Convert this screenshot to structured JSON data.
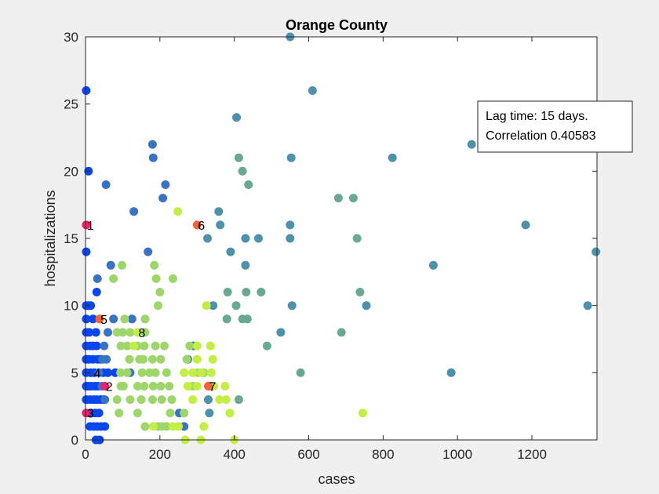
{
  "chart_data": {
    "type": "scatter",
    "title": "Orange County",
    "xlabel": "cases",
    "ylabel": "hospitalizations",
    "xlim": [
      0,
      1375
    ],
    "ylim": [
      0,
      30
    ],
    "xticks": [
      0,
      200,
      400,
      600,
      800,
      1000,
      1200
    ],
    "yticks": [
      0,
      5,
      10,
      15,
      20,
      25,
      30
    ],
    "grid": false,
    "legend": {
      "placement": "top-right",
      "lines": [
        "Lag time: 15 days.",
        "Correlation 0.40583"
      ]
    },
    "colors": {
      "blue": "#0a46f0",
      "steel": "#3a72c4",
      "teal": "#4f91aa",
      "sage": "#6aa892",
      "green": "#9ed66c",
      "lime": "#c3ef44",
      "pink": "#f01e6e",
      "orange": "#f0643a"
    },
    "points": [
      {
        "x": 2,
        "y": 26,
        "c": "blue"
      },
      {
        "x": 8,
        "y": 20,
        "c": "blue"
      },
      {
        "x": 2,
        "y": 14,
        "c": "blue"
      },
      {
        "x": 2,
        "y": 10,
        "c": "blue"
      },
      {
        "x": 8,
        "y": 10,
        "c": "blue"
      },
      {
        "x": 14,
        "y": 10,
        "c": "blue"
      },
      {
        "x": 2,
        "y": 9,
        "c": "blue"
      },
      {
        "x": 20,
        "y": 9,
        "c": "blue"
      },
      {
        "x": 2,
        "y": 8,
        "c": "blue"
      },
      {
        "x": 10,
        "y": 8,
        "c": "blue"
      },
      {
        "x": 28,
        "y": 8,
        "c": "blue"
      },
      {
        "x": 2,
        "y": 7,
        "c": "blue"
      },
      {
        "x": 12,
        "y": 7,
        "c": "blue"
      },
      {
        "x": 20,
        "y": 7,
        "c": "blue"
      },
      {
        "x": 30,
        "y": 7,
        "c": "blue"
      },
      {
        "x": 2,
        "y": 6,
        "c": "blue"
      },
      {
        "x": 10,
        "y": 6,
        "c": "blue"
      },
      {
        "x": 20,
        "y": 6,
        "c": "blue"
      },
      {
        "x": 32,
        "y": 6,
        "c": "blue"
      },
      {
        "x": 40,
        "y": 6,
        "c": "blue"
      },
      {
        "x": 2,
        "y": 5,
        "c": "blue"
      },
      {
        "x": 14,
        "y": 5,
        "c": "blue"
      },
      {
        "x": 24,
        "y": 5,
        "c": "blue"
      },
      {
        "x": 36,
        "y": 5,
        "c": "blue"
      },
      {
        "x": 48,
        "y": 5,
        "c": "blue"
      },
      {
        "x": 60,
        "y": 5,
        "c": "blue"
      },
      {
        "x": 80,
        "y": 5,
        "c": "blue"
      },
      {
        "x": 2,
        "y": 4,
        "c": "blue"
      },
      {
        "x": 8,
        "y": 4,
        "c": "blue"
      },
      {
        "x": 16,
        "y": 4,
        "c": "blue"
      },
      {
        "x": 26,
        "y": 4,
        "c": "blue"
      },
      {
        "x": 34,
        "y": 4,
        "c": "blue"
      },
      {
        "x": 2,
        "y": 3,
        "c": "blue"
      },
      {
        "x": 12,
        "y": 3,
        "c": "blue"
      },
      {
        "x": 22,
        "y": 3,
        "c": "blue"
      },
      {
        "x": 30,
        "y": 3,
        "c": "blue"
      },
      {
        "x": 40,
        "y": 3,
        "c": "blue"
      },
      {
        "x": 48,
        "y": 3,
        "c": "blue"
      },
      {
        "x": 14,
        "y": 2,
        "c": "blue"
      },
      {
        "x": 26,
        "y": 2,
        "c": "blue"
      },
      {
        "x": 36,
        "y": 2,
        "c": "blue"
      },
      {
        "x": 12,
        "y": 1,
        "c": "blue"
      },
      {
        "x": 22,
        "y": 1,
        "c": "blue"
      },
      {
        "x": 32,
        "y": 1,
        "c": "blue"
      },
      {
        "x": 42,
        "y": 1,
        "c": "blue"
      },
      {
        "x": 52,
        "y": 1,
        "c": "blue"
      },
      {
        "x": 28,
        "y": 0,
        "c": "blue"
      },
      {
        "x": 38,
        "y": 0,
        "c": "blue"
      },
      {
        "x": 30,
        "y": 11,
        "c": "blue"
      },
      {
        "x": 32,
        "y": 12,
        "c": "steel"
      },
      {
        "x": 55,
        "y": 19,
        "c": "steel"
      },
      {
        "x": 68,
        "y": 13,
        "c": "steel"
      },
      {
        "x": 60,
        "y": 8,
        "c": "steel"
      },
      {
        "x": 75,
        "y": 9,
        "c": "steel"
      },
      {
        "x": 50,
        "y": 7,
        "c": "steel"
      },
      {
        "x": 56,
        "y": 6,
        "c": "steel"
      },
      {
        "x": 46,
        "y": 6,
        "c": "steel"
      },
      {
        "x": 52,
        "y": 3,
        "c": "steel"
      },
      {
        "x": 44,
        "y": 4,
        "c": "steel"
      },
      {
        "x": 36,
        "y": 5,
        "c": "steel"
      },
      {
        "x": 130,
        "y": 17,
        "c": "steel"
      },
      {
        "x": 168,
        "y": 14,
        "c": "steel"
      },
      {
        "x": 180,
        "y": 22,
        "c": "steel"
      },
      {
        "x": 182,
        "y": 21,
        "c": "steel"
      },
      {
        "x": 208,
        "y": 18,
        "c": "steel"
      },
      {
        "x": 215,
        "y": 19,
        "c": "steel"
      },
      {
        "x": 125,
        "y": 9,
        "c": "steel"
      },
      {
        "x": 120,
        "y": 5,
        "c": "steel"
      },
      {
        "x": 265,
        "y": 1,
        "c": "steel"
      },
      {
        "x": 252,
        "y": 2,
        "c": "steel"
      },
      {
        "x": 275,
        "y": 6,
        "c": "steel"
      },
      {
        "x": 290,
        "y": 7,
        "c": "steel"
      },
      {
        "x": 328,
        "y": 15,
        "c": "teal"
      },
      {
        "x": 343,
        "y": 10,
        "c": "teal"
      },
      {
        "x": 358,
        "y": 17,
        "c": "teal"
      },
      {
        "x": 362,
        "y": 16,
        "c": "teal"
      },
      {
        "x": 390,
        "y": 14,
        "c": "teal"
      },
      {
        "x": 406,
        "y": 24,
        "c": "teal"
      },
      {
        "x": 430,
        "y": 15,
        "c": "teal"
      },
      {
        "x": 430,
        "y": 13,
        "c": "teal"
      },
      {
        "x": 465,
        "y": 15,
        "c": "teal"
      },
      {
        "x": 550,
        "y": 30,
        "c": "teal"
      },
      {
        "x": 610,
        "y": 26,
        "c": "teal"
      },
      {
        "x": 553,
        "y": 21,
        "c": "teal"
      },
      {
        "x": 550,
        "y": 16,
        "c": "teal"
      },
      {
        "x": 550,
        "y": 15,
        "c": "teal"
      },
      {
        "x": 555,
        "y": 10,
        "c": "teal"
      },
      {
        "x": 525,
        "y": 8,
        "c": "teal"
      },
      {
        "x": 825,
        "y": 21,
        "c": "teal"
      },
      {
        "x": 1038,
        "y": 22,
        "c": "teal"
      },
      {
        "x": 1183,
        "y": 16,
        "c": "teal"
      },
      {
        "x": 935,
        "y": 13,
        "c": "teal"
      },
      {
        "x": 983,
        "y": 5,
        "c": "teal"
      },
      {
        "x": 1350,
        "y": 10,
        "c": "teal"
      },
      {
        "x": 1372,
        "y": 14,
        "c": "teal"
      },
      {
        "x": 755,
        "y": 10,
        "c": "teal"
      },
      {
        "x": 338,
        "y": 4,
        "c": "teal"
      },
      {
        "x": 330,
        "y": 3,
        "c": "teal"
      },
      {
        "x": 333,
        "y": 2,
        "c": "teal"
      },
      {
        "x": 412,
        "y": 21,
        "c": "sage"
      },
      {
        "x": 422,
        "y": 20,
        "c": "sage"
      },
      {
        "x": 438,
        "y": 19,
        "c": "sage"
      },
      {
        "x": 680,
        "y": 18,
        "c": "sage"
      },
      {
        "x": 720,
        "y": 18,
        "c": "sage"
      },
      {
        "x": 730,
        "y": 15,
        "c": "sage"
      },
      {
        "x": 738,
        "y": 11,
        "c": "sage"
      },
      {
        "x": 688,
        "y": 8,
        "c": "sage"
      },
      {
        "x": 578,
        "y": 5,
        "c": "sage"
      },
      {
        "x": 488,
        "y": 7,
        "c": "sage"
      },
      {
        "x": 472,
        "y": 11,
        "c": "sage"
      },
      {
        "x": 432,
        "y": 11,
        "c": "sage"
      },
      {
        "x": 435,
        "y": 9,
        "c": "sage"
      },
      {
        "x": 422,
        "y": 9,
        "c": "sage"
      },
      {
        "x": 405,
        "y": 10,
        "c": "sage"
      },
      {
        "x": 382,
        "y": 11,
        "c": "sage"
      },
      {
        "x": 380,
        "y": 9,
        "c": "sage"
      },
      {
        "x": 412,
        "y": 3,
        "c": "sage"
      },
      {
        "x": 75,
        "y": 12,
        "c": "green"
      },
      {
        "x": 98,
        "y": 13,
        "c": "green"
      },
      {
        "x": 185,
        "y": 13,
        "c": "green"
      },
      {
        "x": 190,
        "y": 12,
        "c": "green"
      },
      {
        "x": 235,
        "y": 12,
        "c": "green"
      },
      {
        "x": 195,
        "y": 10,
        "c": "green"
      },
      {
        "x": 200,
        "y": 11,
        "c": "green"
      },
      {
        "x": 160,
        "y": 9,
        "c": "green"
      },
      {
        "x": 105,
        "y": 9,
        "c": "green"
      },
      {
        "x": 85,
        "y": 8,
        "c": "green"
      },
      {
        "x": 100,
        "y": 8,
        "c": "green"
      },
      {
        "x": 120,
        "y": 8,
        "c": "green"
      },
      {
        "x": 160,
        "y": 8,
        "c": "green"
      },
      {
        "x": 95,
        "y": 7,
        "c": "green"
      },
      {
        "x": 112,
        "y": 7,
        "c": "green"
      },
      {
        "x": 140,
        "y": 7,
        "c": "green"
      },
      {
        "x": 158,
        "y": 7,
        "c": "green"
      },
      {
        "x": 188,
        "y": 7,
        "c": "green"
      },
      {
        "x": 212,
        "y": 7,
        "c": "green"
      },
      {
        "x": 118,
        "y": 6,
        "c": "green"
      },
      {
        "x": 145,
        "y": 6,
        "c": "green"
      },
      {
        "x": 155,
        "y": 6,
        "c": "green"
      },
      {
        "x": 180,
        "y": 6,
        "c": "green"
      },
      {
        "x": 202,
        "y": 6,
        "c": "green"
      },
      {
        "x": 94,
        "y": 5,
        "c": "green"
      },
      {
        "x": 112,
        "y": 5,
        "c": "green"
      },
      {
        "x": 152,
        "y": 5,
        "c": "green"
      },
      {
        "x": 172,
        "y": 5,
        "c": "green"
      },
      {
        "x": 188,
        "y": 5,
        "c": "green"
      },
      {
        "x": 218,
        "y": 5,
        "c": "green"
      },
      {
        "x": 95,
        "y": 4,
        "c": "green"
      },
      {
        "x": 102,
        "y": 4,
        "c": "green"
      },
      {
        "x": 140,
        "y": 4,
        "c": "green"
      },
      {
        "x": 158,
        "y": 4,
        "c": "green"
      },
      {
        "x": 182,
        "y": 4,
        "c": "green"
      },
      {
        "x": 202,
        "y": 4,
        "c": "green"
      },
      {
        "x": 225,
        "y": 4,
        "c": "green"
      },
      {
        "x": 85,
        "y": 3,
        "c": "green"
      },
      {
        "x": 120,
        "y": 3,
        "c": "green"
      },
      {
        "x": 150,
        "y": 3,
        "c": "green"
      },
      {
        "x": 180,
        "y": 3,
        "c": "green"
      },
      {
        "x": 205,
        "y": 3,
        "c": "green"
      },
      {
        "x": 232,
        "y": 3,
        "c": "green"
      },
      {
        "x": 90,
        "y": 2,
        "c": "green"
      },
      {
        "x": 140,
        "y": 2,
        "c": "green"
      },
      {
        "x": 228,
        "y": 2,
        "c": "green"
      },
      {
        "x": 265,
        "y": 2,
        "c": "green"
      },
      {
        "x": 160,
        "y": 1,
        "c": "green"
      },
      {
        "x": 195,
        "y": 1,
        "c": "green"
      },
      {
        "x": 205,
        "y": 1,
        "c": "green"
      },
      {
        "x": 218,
        "y": 1,
        "c": "green"
      },
      {
        "x": 272,
        "y": 6,
        "c": "green"
      },
      {
        "x": 280,
        "y": 7,
        "c": "green"
      },
      {
        "x": 288,
        "y": 4,
        "c": "green"
      },
      {
        "x": 302,
        "y": 5,
        "c": "green"
      },
      {
        "x": 318,
        "y": 5,
        "c": "green"
      },
      {
        "x": 248,
        "y": 17,
        "c": "lime"
      },
      {
        "x": 325,
        "y": 10,
        "c": "lime"
      },
      {
        "x": 300,
        "y": 7,
        "c": "lime"
      },
      {
        "x": 336,
        "y": 7,
        "c": "lime"
      },
      {
        "x": 300,
        "y": 6,
        "c": "lime"
      },
      {
        "x": 342,
        "y": 6,
        "c": "lime"
      },
      {
        "x": 265,
        "y": 5,
        "c": "lime"
      },
      {
        "x": 288,
        "y": 5,
        "c": "lime"
      },
      {
        "x": 312,
        "y": 5,
        "c": "lime"
      },
      {
        "x": 338,
        "y": 5,
        "c": "lime"
      },
      {
        "x": 275,
        "y": 4,
        "c": "lime"
      },
      {
        "x": 300,
        "y": 4,
        "c": "lime"
      },
      {
        "x": 345,
        "y": 4,
        "c": "lime"
      },
      {
        "x": 375,
        "y": 4,
        "c": "lime"
      },
      {
        "x": 288,
        "y": 3,
        "c": "lime"
      },
      {
        "x": 360,
        "y": 3,
        "c": "lime"
      },
      {
        "x": 378,
        "y": 3,
        "c": "lime"
      },
      {
        "x": 388,
        "y": 2,
        "c": "lime"
      },
      {
        "x": 745,
        "y": 2,
        "c": "lime"
      },
      {
        "x": 318,
        "y": 1,
        "c": "lime"
      },
      {
        "x": 268,
        "y": 0,
        "c": "lime"
      },
      {
        "x": 310,
        "y": 0,
        "c": "lime"
      },
      {
        "x": 400,
        "y": 0,
        "c": "lime"
      },
      {
        "x": 140,
        "y": 8,
        "c": "lime"
      },
      {
        "x": 130,
        "y": 7,
        "c": "lime"
      },
      {
        "x": 182,
        "y": 1,
        "c": "lime"
      },
      {
        "x": 235,
        "y": 1,
        "c": "lime"
      },
      {
        "x": 250,
        "y": 1,
        "c": "lime"
      },
      {
        "x": 2,
        "y": 16,
        "c": "pink"
      },
      {
        "x": 2,
        "y": 2,
        "c": "pink"
      },
      {
        "x": 52,
        "y": 4,
        "c": "pink"
      },
      {
        "x": 300,
        "y": 16,
        "c": "orange"
      },
      {
        "x": 38,
        "y": 9,
        "c": "orange"
      },
      {
        "x": 330,
        "y": 4,
        "c": "orange"
      }
    ],
    "annotations": [
      {
        "text": "1",
        "x": 2,
        "y": 16
      },
      {
        "text": "2",
        "x": 52,
        "y": 4
      },
      {
        "text": "3",
        "x": 2,
        "y": 2
      },
      {
        "text": "4",
        "x": 20,
        "y": 5
      },
      {
        "text": "5",
        "x": 38,
        "y": 9
      },
      {
        "text": "6",
        "x": 300,
        "y": 16
      },
      {
        "text": "7",
        "x": 330,
        "y": 4
      },
      {
        "text": "8",
        "x": 140,
        "y": 8
      }
    ]
  }
}
